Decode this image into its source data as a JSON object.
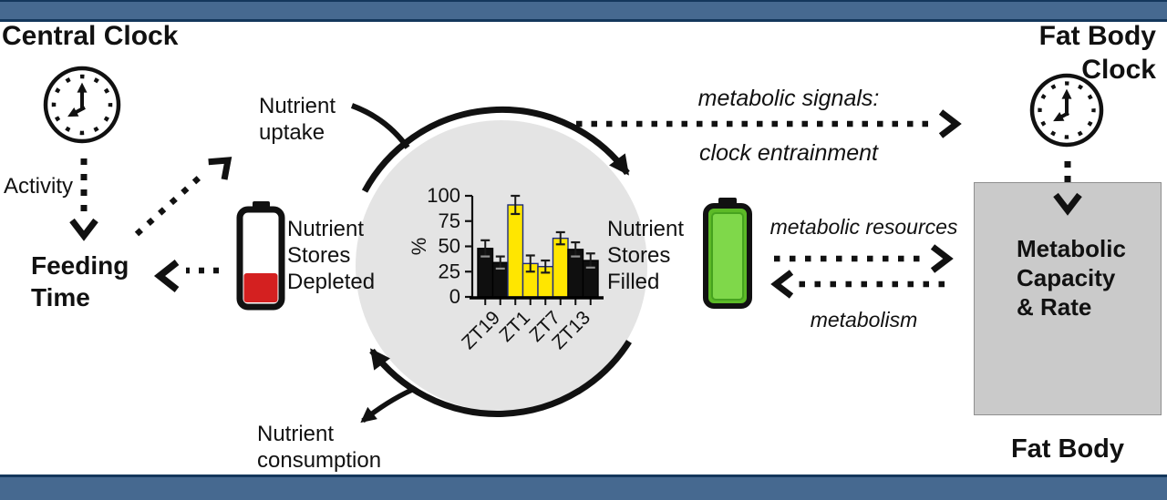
{
  "figure": {
    "left_title": "Central Clock",
    "right_title": "Fat Body Clock",
    "activity": "Activity",
    "feeding_time": "Feeding\nTime",
    "nutrient_uptake": "Nutrient\nuptake",
    "stores_depleted": "Nutrient\nStores\nDepleted",
    "stores_filled": "Nutrient\nStores\nFilled",
    "nutrient_consumption": "Nutrient\nconsumption",
    "metabolic_signals": "metabolic signals:",
    "clock_entrainment": "clock entrainment",
    "metabolic_resources": "metabolic resources",
    "metabolism": "metabolism",
    "metabolic_box": "Metabolic\nCapacity\n& Rate",
    "fat_body": "Fat Body"
  },
  "colors": {
    "border_blue": "#466990",
    "border_navy": "#14375C",
    "cycle_circle_gray": "#E4E4E4",
    "fat_body_box_gray": "#CACACA",
    "battery_red": "#D42020",
    "battery_green": "#7FD84A",
    "bar_yellow": "#FFE600",
    "bar_black": "#0F0F0F",
    "yellow_bar_outline": "#1D2B7D",
    "line_black": "#111111"
  },
  "chart_data": {
    "type": "bar",
    "title": "",
    "xlabel": "",
    "ylabel": "%",
    "ylim": [
      0,
      100
    ],
    "yticks": [
      0,
      25,
      50,
      75,
      100
    ],
    "grid": false,
    "legend": false,
    "categories": [
      "ZT19",
      "ZT1",
      "ZT7",
      "ZT13"
    ],
    "bars": [
      {
        "timepoint": "ZT19",
        "value": 48,
        "error": 8,
        "color": "black"
      },
      {
        "timepoint": "ZT19",
        "value": 34,
        "error": 6,
        "color": "black"
      },
      {
        "timepoint": "ZT1",
        "value": 91,
        "error": 9,
        "color": "yellow"
      },
      {
        "timepoint": "ZT1",
        "value": 33,
        "error": 8,
        "color": "yellow"
      },
      {
        "timepoint": "ZT7",
        "value": 30,
        "error": 6,
        "color": "yellow"
      },
      {
        "timepoint": "ZT7",
        "value": 58,
        "error": 6,
        "color": "yellow"
      },
      {
        "timepoint": "ZT13",
        "value": 47,
        "error": 7,
        "color": "black"
      },
      {
        "timepoint": "ZT13",
        "value": 36,
        "error": 7,
        "color": "black"
      }
    ]
  }
}
